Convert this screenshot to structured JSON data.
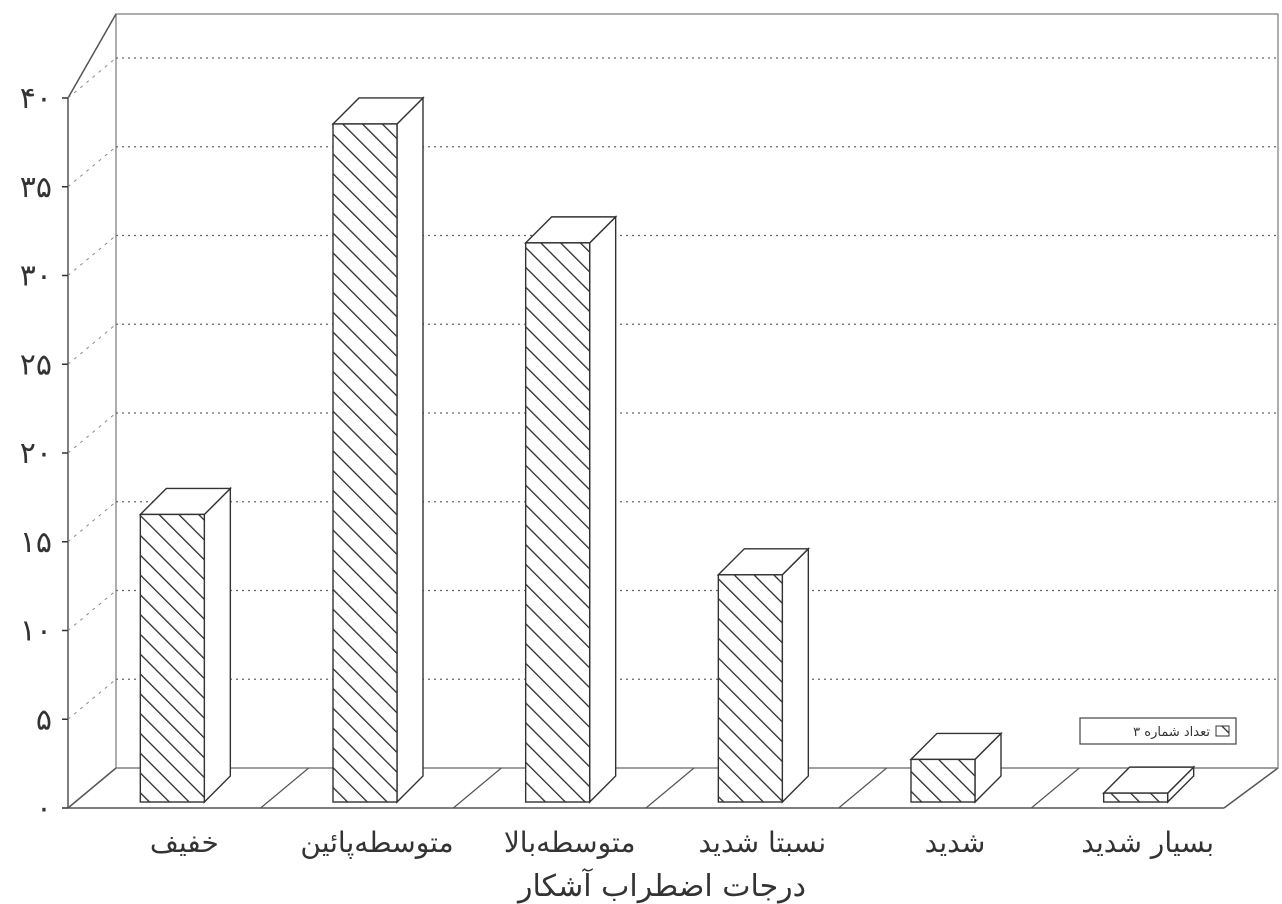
{
  "chart_data": {
    "type": "bar",
    "categories": [
      "خفیف",
      "متوسطه‌پائین",
      "متوسطه‌بالا",
      "نسبتا شدید",
      "شدید",
      "بسیار شدید"
    ],
    "values": [
      16.2,
      38.2,
      31.5,
      12.8,
      2.4,
      0.5
    ],
    "ylim": [
      0,
      40
    ],
    "ytick_labels": [
      "۰",
      "۵",
      "۱۰",
      "۱۵",
      "۲۰",
      "۲۵",
      "۳۰",
      "۳۵",
      "۴۰"
    ],
    "xlabel": "درجات اضطراب آشکار",
    "legend": {
      "label": "تعداد شماره ۳",
      "position": "right"
    },
    "grid": true,
    "style": "3d-hatched"
  }
}
